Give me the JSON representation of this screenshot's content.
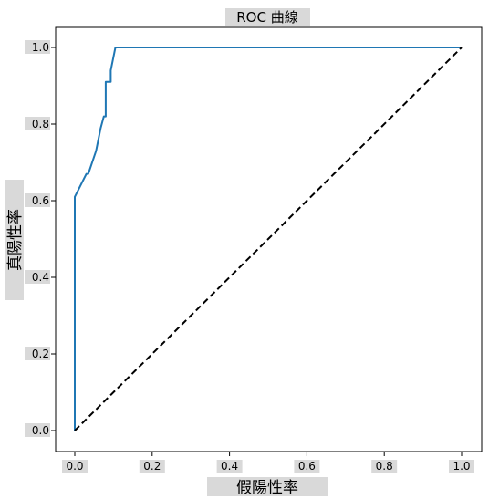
{
  "chart_data": {
    "type": "line",
    "title": "ROC 曲線",
    "xlabel": "假陽性率",
    "ylabel": "真陽性率",
    "xlim": [
      0.0,
      1.0
    ],
    "ylim": [
      0.0,
      1.0
    ],
    "xticks": [
      "0.0",
      "0.2",
      "0.4",
      "0.6",
      "0.8",
      "1.0"
    ],
    "yticks": [
      "0.0",
      "0.2",
      "0.4",
      "0.6",
      "0.8",
      "1.0"
    ],
    "grid": false,
    "series": [
      {
        "style": "solid",
        "color": "#1f77b4",
        "x": [
          0.0,
          0.0,
          0.03,
          0.035,
          0.055,
          0.067,
          0.075,
          0.08,
          0.08,
          0.093,
          0.093,
          0.105,
          1.0
        ],
        "y": [
          0.0,
          0.61,
          0.67,
          0.67,
          0.73,
          0.79,
          0.82,
          0.82,
          0.91,
          0.91,
          0.94,
          1.0,
          1.0
        ]
      },
      {
        "style": "dashed",
        "color": "#000000",
        "x": [
          0.0,
          1.0
        ],
        "y": [
          0.0,
          1.0
        ]
      }
    ]
  }
}
